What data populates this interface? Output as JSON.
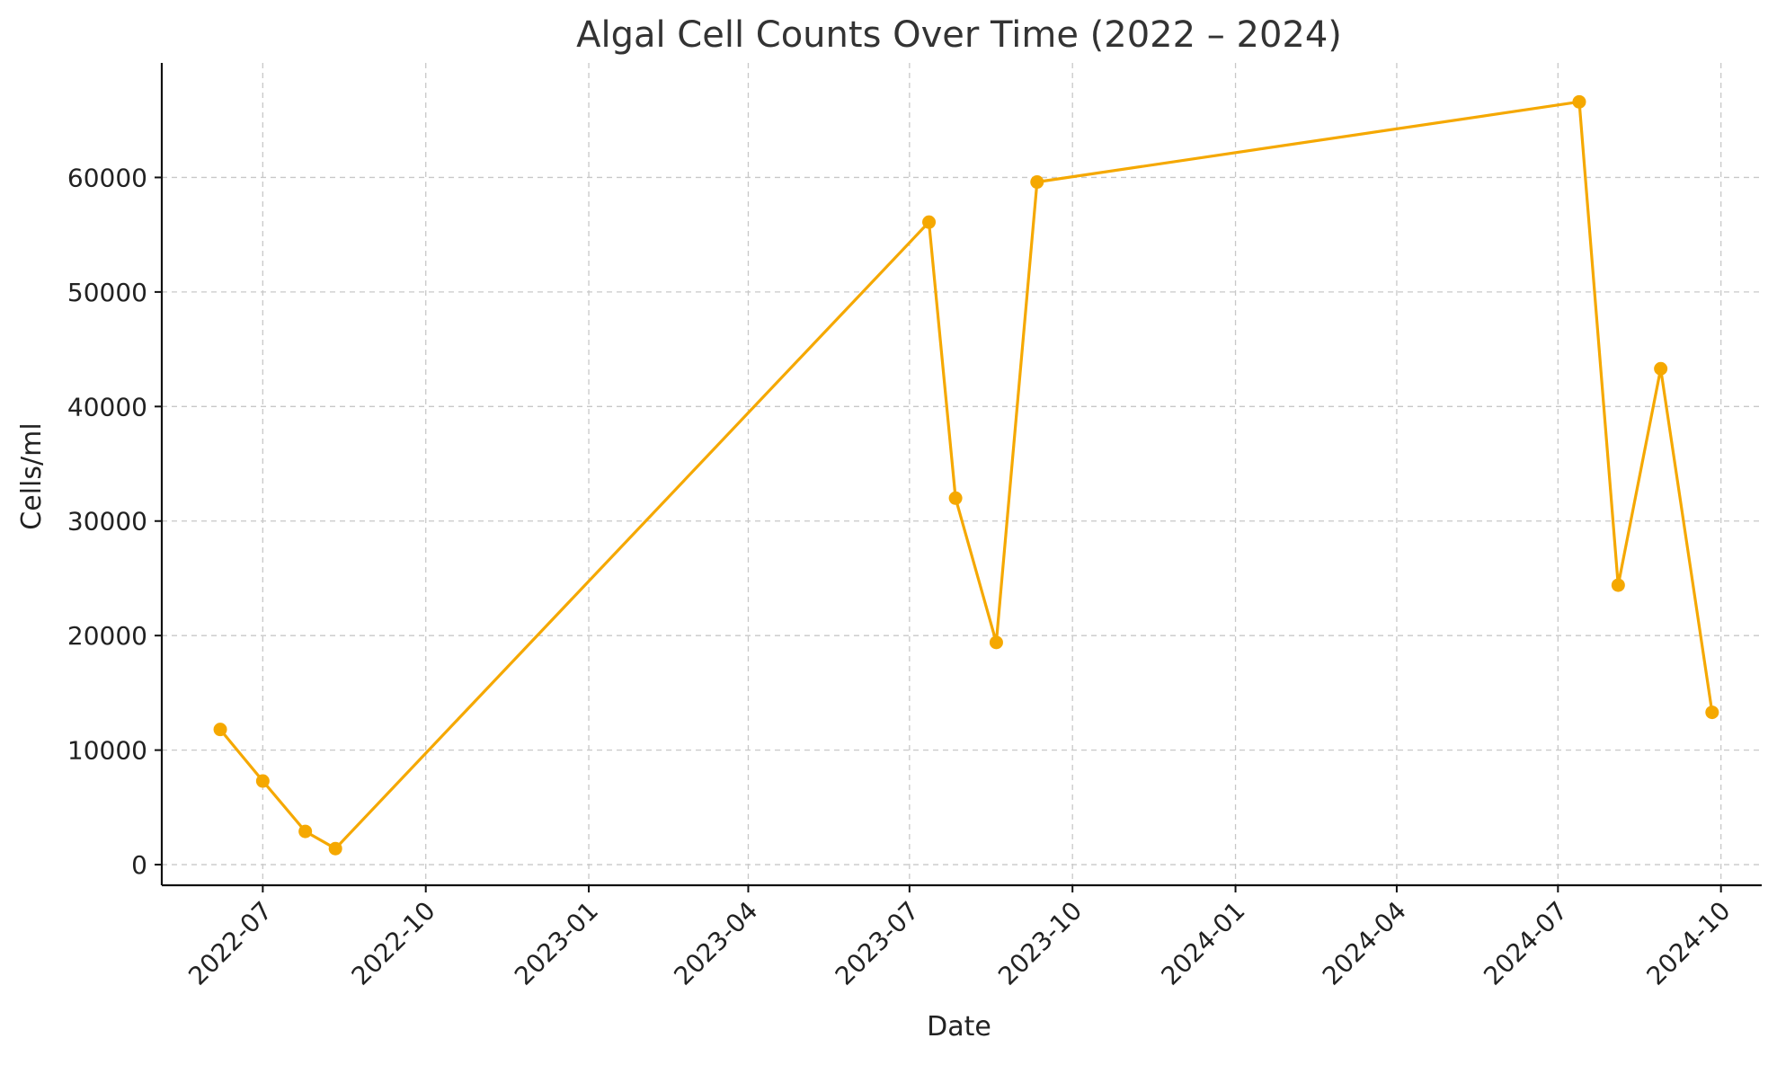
{
  "chart_data": {
    "type": "line",
    "title": "Algal Cell Counts Over Time (2022 – 2024)",
    "xlabel": "Date",
    "ylabel": "Cells/ml",
    "x_tick_labels": [
      "2022-07",
      "2022-10",
      "2023-01",
      "2023-04",
      "2023-07",
      "2023-10",
      "2024-01",
      "2024-04",
      "2024-07",
      "2024-10"
    ],
    "x_tick_dates": [
      "2022-07-01",
      "2022-10-01",
      "2023-01-01",
      "2023-04-01",
      "2023-07-01",
      "2023-10-01",
      "2024-01-01",
      "2024-04-01",
      "2024-07-01",
      "2024-10-01"
    ],
    "y_ticks": [
      0,
      10000,
      20000,
      30000,
      40000,
      50000,
      60000
    ],
    "y_tick_labels": [
      "0",
      "10000",
      "20000",
      "30000",
      "40000",
      "50000",
      "60000"
    ],
    "xlim": [
      "2022-05-05",
      "2024-10-24"
    ],
    "ylim": [
      -1800,
      70000
    ],
    "grid": true,
    "color": "#F5A800",
    "series": [
      {
        "x": [
          "2022-06-07",
          "2022-07-01",
          "2022-07-25",
          "2022-08-11",
          "2023-07-12",
          "2023-07-27",
          "2023-08-19",
          "2023-09-11",
          "2024-07-13",
          "2024-08-04",
          "2024-08-28",
          "2024-09-26"
        ],
        "values": [
          11800,
          7300,
          2900,
          1400,
          56100,
          32000,
          19400,
          59600,
          66600,
          24400,
          43300,
          13300
        ]
      }
    ]
  }
}
